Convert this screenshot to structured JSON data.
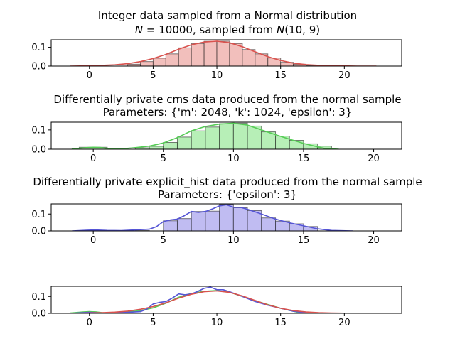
{
  "chart_data": [
    {
      "type": "bar",
      "title_lines": [
        "Integer data sampled from a Normal distribution",
        "$N = 10000$, sampled from $N(10, 9)$"
      ],
      "title_display": [
        [
          {
            "t": "Integer data sampled from a Normal distribution"
          }
        ],
        [
          {
            "t": "N",
            "it": true
          },
          {
            "t": " = 10000, sampled from "
          },
          {
            "t": "N",
            "it": true
          },
          {
            "t": "(10, 9)"
          }
        ]
      ],
      "xlim": [
        -3,
        24.5
      ],
      "ylim": [
        0,
        0.14
      ],
      "xticks": [
        0,
        5,
        10,
        15,
        20
      ],
      "yticks": [
        0.0,
        0.1
      ],
      "ytick_labels": [
        "0.0",
        "0.1"
      ],
      "colors": {
        "fill": "#f2bfbc",
        "line": "#d9524e"
      },
      "bins": [
        {
          "x0": 3,
          "x1": 4,
          "h": 0.01
        },
        {
          "x0": 4,
          "x1": 5,
          "h": 0.024
        },
        {
          "x0": 5,
          "x1": 6,
          "h": 0.042
        },
        {
          "x0": 6,
          "x1": 7,
          "h": 0.065
        },
        {
          "x0": 7,
          "x1": 8,
          "h": 0.097
        },
        {
          "x0": 8,
          "x1": 9,
          "h": 0.12
        },
        {
          "x0": 9,
          "x1": 10,
          "h": 0.132
        },
        {
          "x0": 10,
          "x1": 11,
          "h": 0.133
        },
        {
          "x0": 11,
          "x1": 12,
          "h": 0.12
        },
        {
          "x0": 12,
          "x1": 13,
          "h": 0.088
        },
        {
          "x0": 13,
          "x1": 14,
          "h": 0.065
        },
        {
          "x0": 14,
          "x1": 15,
          "h": 0.043
        },
        {
          "x0": 15,
          "x1": 16,
          "h": 0.02
        },
        {
          "x0": 16,
          "x1": 17,
          "h": 0.01
        },
        {
          "x0": 17,
          "x1": 18,
          "h": 0.003
        },
        {
          "x0": 18,
          "x1": 19,
          "h": 0.001
        }
      ],
      "kde": {
        "x": [
          -1.5,
          0,
          1,
          2,
          3,
          4,
          5,
          6,
          7,
          8,
          9,
          10,
          11,
          12,
          13,
          14,
          15,
          16,
          17,
          18,
          19,
          20,
          21,
          22.5
        ],
        "y": [
          0,
          0.002,
          0.004,
          0.007,
          0.013,
          0.024,
          0.04,
          0.062,
          0.09,
          0.113,
          0.128,
          0.133,
          0.124,
          0.103,
          0.076,
          0.05,
          0.03,
          0.016,
          0.008,
          0.004,
          0.002,
          0.001,
          0,
          0
        ]
      }
    },
    {
      "type": "bar",
      "title_lines": [
        "Differentially private cms data produced from the normal sample",
        "Parameters: {'m': 2048, 'k': 1024, 'epsilon': 3}"
      ],
      "title_display": [
        [
          {
            "t": "Differentially private cms data produced from the normal sample"
          }
        ],
        [
          {
            "t": "Parameters: {'m': 2048, 'k': 1024, 'epsilon': 3}"
          }
        ]
      ],
      "xlim": [
        -3,
        22
      ],
      "ylim": [
        0,
        0.14
      ],
      "xticks": [
        0,
        5,
        10,
        15,
        20
      ],
      "yticks": [
        0.0,
        0.1
      ],
      "ytick_labels": [
        "0.0",
        "0.1"
      ],
      "colors": {
        "fill": "#b7efb7",
        "line": "#55cc55"
      },
      "bins": [
        {
          "x0": -1,
          "x1": 1,
          "h": 0.01
        },
        {
          "x0": 3,
          "x1": 4,
          "h": 0.007
        },
        {
          "x0": 4,
          "x1": 5,
          "h": 0.015
        },
        {
          "x0": 5,
          "x1": 6,
          "h": 0.035
        },
        {
          "x0": 6,
          "x1": 7,
          "h": 0.063
        },
        {
          "x0": 7,
          "x1": 8,
          "h": 0.095
        },
        {
          "x0": 8,
          "x1": 9,
          "h": 0.115
        },
        {
          "x0": 9,
          "x1": 10,
          "h": 0.132
        },
        {
          "x0": 10,
          "x1": 11,
          "h": 0.135
        },
        {
          "x0": 11,
          "x1": 12,
          "h": 0.12
        },
        {
          "x0": 12,
          "x1": 13,
          "h": 0.09
        },
        {
          "x0": 13,
          "x1": 14,
          "h": 0.068
        },
        {
          "x0": 14,
          "x1": 15,
          "h": 0.046
        },
        {
          "x0": 15,
          "x1": 16,
          "h": 0.028
        },
        {
          "x0": 16,
          "x1": 17,
          "h": 0.016
        }
      ],
      "kde": {
        "x": [
          -1.5,
          -0.5,
          0,
          0.5,
          1,
          1.5,
          2,
          3,
          4,
          5,
          6,
          7,
          8,
          9,
          10,
          11,
          12,
          13,
          14,
          15,
          16,
          16.5,
          17.5
        ],
        "y": [
          0.002,
          0.008,
          0.01,
          0.009,
          0.004,
          0.001,
          0.002,
          0.008,
          0.016,
          0.032,
          0.06,
          0.095,
          0.118,
          0.13,
          0.135,
          0.125,
          0.1,
          0.075,
          0.052,
          0.03,
          0.012,
          0.004,
          0
        ]
      }
    },
    {
      "type": "bar",
      "title_lines": [
        "Differentially private explicit_hist data produced from the normal sample",
        "Parameters: {'epsilon': 3}"
      ],
      "title_display": [
        [
          {
            "t": "Differentially private explicit_hist data produced from the normal sample"
          }
        ],
        [
          {
            "t": "Parameters: {'epsilon': 3}"
          }
        ]
      ],
      "xlim": [
        -3,
        22
      ],
      "ylim": [
        0,
        0.16
      ],
      "xticks": [
        0,
        5,
        10,
        15,
        20
      ],
      "yticks": [
        0.0,
        0.1
      ],
      "ytick_labels": [
        "0.0",
        "0.1"
      ],
      "colors": {
        "fill": "#c0bcf2",
        "line": "#5555d5"
      },
      "bins": [
        {
          "x0": -1,
          "x1": 1,
          "h": 0.002
        },
        {
          "x0": 3,
          "x1": 4,
          "h": 0.002
        },
        {
          "x0": 5,
          "x1": 6,
          "h": 0.06
        },
        {
          "x0": 6,
          "x1": 7,
          "h": 0.073
        },
        {
          "x0": 7,
          "x1": 8,
          "h": 0.115
        },
        {
          "x0": 8,
          "x1": 9,
          "h": 0.117
        },
        {
          "x0": 9,
          "x1": 10,
          "h": 0.158
        },
        {
          "x0": 10,
          "x1": 11,
          "h": 0.137
        },
        {
          "x0": 11,
          "x1": 12,
          "h": 0.12
        },
        {
          "x0": 12,
          "x1": 13,
          "h": 0.077
        },
        {
          "x0": 13,
          "x1": 14,
          "h": 0.058
        },
        {
          "x0": 14,
          "x1": 15,
          "h": 0.042
        },
        {
          "x0": 15,
          "x1": 16,
          "h": 0.026
        }
      ],
      "kde": {
        "x": [
          -1.5,
          -0.5,
          0,
          1,
          2,
          3,
          4,
          4.5,
          5,
          5.5,
          6,
          6.5,
          7,
          7.5,
          8,
          8.5,
          9,
          9.5,
          10,
          10.5,
          11,
          12,
          13,
          14,
          15,
          16,
          17,
          18.5
        ],
        "y": [
          0,
          0.004,
          0.006,
          0.003,
          0.002,
          0.006,
          0.01,
          0.025,
          0.055,
          0.065,
          0.07,
          0.09,
          0.115,
          0.11,
          0.115,
          0.13,
          0.148,
          0.155,
          0.14,
          0.14,
          0.128,
          0.1,
          0.07,
          0.048,
          0.03,
          0.012,
          0.003,
          0
        ]
      }
    },
    {
      "type": "line",
      "title_lines": [],
      "title_display": [],
      "xlim": [
        -3,
        24.5
      ],
      "ylim": [
        0,
        0.16
      ],
      "xticks": [
        0,
        5,
        10,
        15,
        20
      ],
      "yticks": [
        0.0,
        0.1
      ],
      "ytick_labels": [
        "0.0",
        "0.1"
      ],
      "colors": {
        "fill": "none",
        "line": "#000000"
      },
      "bins": [],
      "overlay_series": [
        {
          "color": "#55cc55",
          "x": [
            -1.5,
            -0.5,
            0,
            0.5,
            1,
            1.5,
            2,
            3,
            4,
            5,
            6,
            7,
            8,
            9,
            10,
            11,
            12,
            13,
            14,
            15,
            16,
            16.5,
            17.5
          ],
          "y": [
            0.002,
            0.008,
            0.01,
            0.009,
            0.004,
            0.001,
            0.002,
            0.008,
            0.016,
            0.032,
            0.06,
            0.095,
            0.118,
            0.13,
            0.135,
            0.125,
            0.1,
            0.075,
            0.052,
            0.03,
            0.012,
            0.004,
            0
          ]
        },
        {
          "color": "#5555d5",
          "x": [
            -1.5,
            -0.5,
            0,
            1,
            2,
            3,
            4,
            4.5,
            5,
            5.5,
            6,
            6.5,
            7,
            7.5,
            8,
            8.5,
            9,
            9.5,
            10,
            10.5,
            11,
            12,
            13,
            14,
            15,
            16,
            17,
            18.5
          ],
          "y": [
            0,
            0.004,
            0.006,
            0.003,
            0.002,
            0.006,
            0.01,
            0.025,
            0.055,
            0.065,
            0.07,
            0.09,
            0.115,
            0.11,
            0.115,
            0.13,
            0.148,
            0.155,
            0.14,
            0.14,
            0.128,
            0.1,
            0.07,
            0.048,
            0.03,
            0.012,
            0.003,
            0
          ]
        },
        {
          "color": "#d9524e",
          "x": [
            -1.5,
            0,
            1,
            2,
            3,
            4,
            5,
            6,
            7,
            8,
            9,
            10,
            11,
            12,
            13,
            14,
            15,
            16,
            17,
            18,
            19,
            20,
            21,
            22.5
          ],
          "y": [
            0,
            0.002,
            0.004,
            0.007,
            0.013,
            0.024,
            0.04,
            0.062,
            0.09,
            0.113,
            0.128,
            0.133,
            0.124,
            0.103,
            0.076,
            0.05,
            0.03,
            0.016,
            0.008,
            0.004,
            0.002,
            0.001,
            0,
            0
          ]
        }
      ]
    }
  ]
}
